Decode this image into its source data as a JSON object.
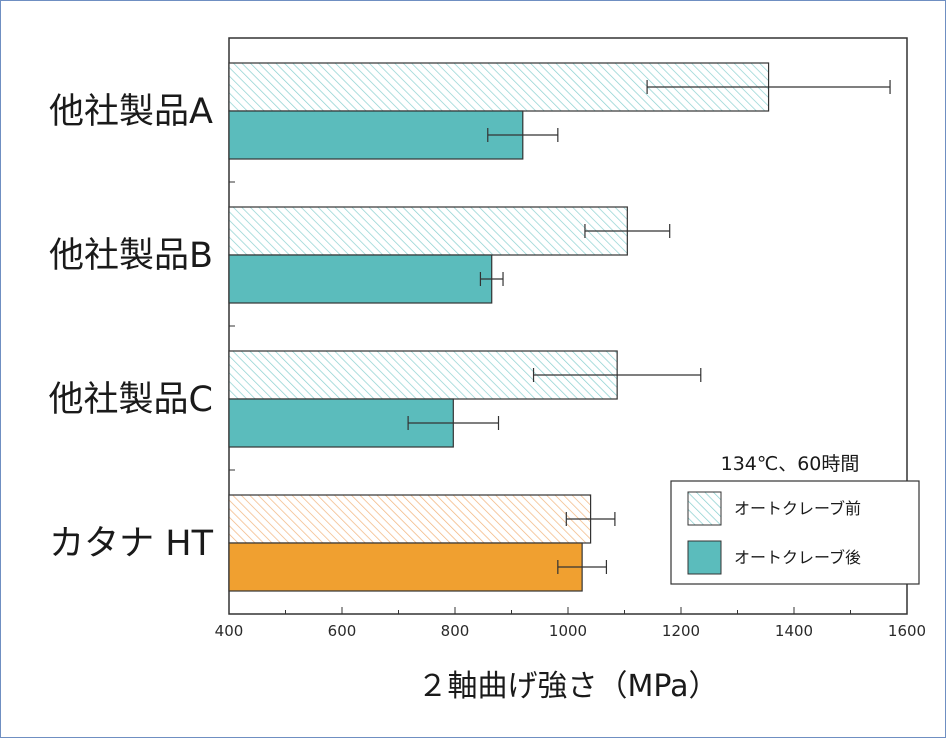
{
  "chart_data": {
    "type": "bar",
    "orientation": "horizontal",
    "categories": [
      "他社製品A",
      "他社製品B",
      "他社製品C",
      "カタナ HT"
    ],
    "series": [
      {
        "name": "オートクレーブ前",
        "values": [
          1355,
          1105,
          1087,
          1040
        ],
        "errors": [
          215,
          75,
          148,
          43
        ]
      },
      {
        "name": "オートクレーブ後",
        "values": [
          920,
          865,
          797,
          1025
        ],
        "errors": [
          62,
          20,
          80,
          43
        ]
      }
    ],
    "xlabel": "２軸曲げ強さ（MPa）",
    "xlim": [
      400,
      1600
    ],
    "xticks": [
      400,
      600,
      800,
      1000,
      1200,
      1400,
      1600
    ],
    "legend_title": "134℃、60時間",
    "legend_position": "bottom-right",
    "colors": {
      "after": "#5bbcbc",
      "before_hatch": "#7fcccc",
      "highlight_after": "#f0a030",
      "highlight_before_hatch": "#f0b070",
      "edge": "#333333"
    },
    "highlight_category_index": 3
  }
}
